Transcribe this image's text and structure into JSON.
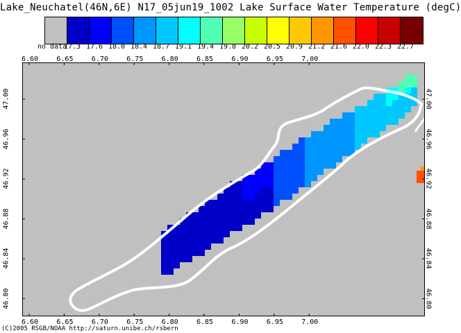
{
  "title": "Lake_Neuchatel(46N,6E) N17_05jun19_1002 Lake Surface Water Temperature (degC)",
  "credit": "(C)2005 RSGB/NOAA http://saturn.unibe.ch/rsbern",
  "colorbar": {
    "labels": [
      "no data",
      "17.3",
      "17.6",
      "18.0",
      "18.4",
      "18.7",
      "19.1",
      "19.4",
      "19.8",
      "20.2",
      "20.5",
      "20.9",
      "21.2",
      "21.6",
      "22.0",
      "22.3",
      "22.7"
    ],
    "colors": [
      "#c0c0c0",
      "#0000c8",
      "#0000ff",
      "#0050ff",
      "#0096ff",
      "#00c8ff",
      "#00ffff",
      "#50ffb4",
      "#96ff64",
      "#c8ff00",
      "#ffff00",
      "#ffc800",
      "#ff9600",
      "#ff5000",
      "#ff0000",
      "#c80000",
      "#780000"
    ]
  },
  "map": {
    "x_ticks": [
      "6.60",
      "6.65",
      "6.70",
      "6.75",
      "6.80",
      "6.85",
      "6.90",
      "6.95",
      "7.00"
    ],
    "y_ticks": [
      "47.00",
      "46.96",
      "46.92",
      "46.88",
      "46.84",
      "46.80"
    ],
    "land_color": "#c0c0c0",
    "shoreline_color": "#ffffff"
  }
}
